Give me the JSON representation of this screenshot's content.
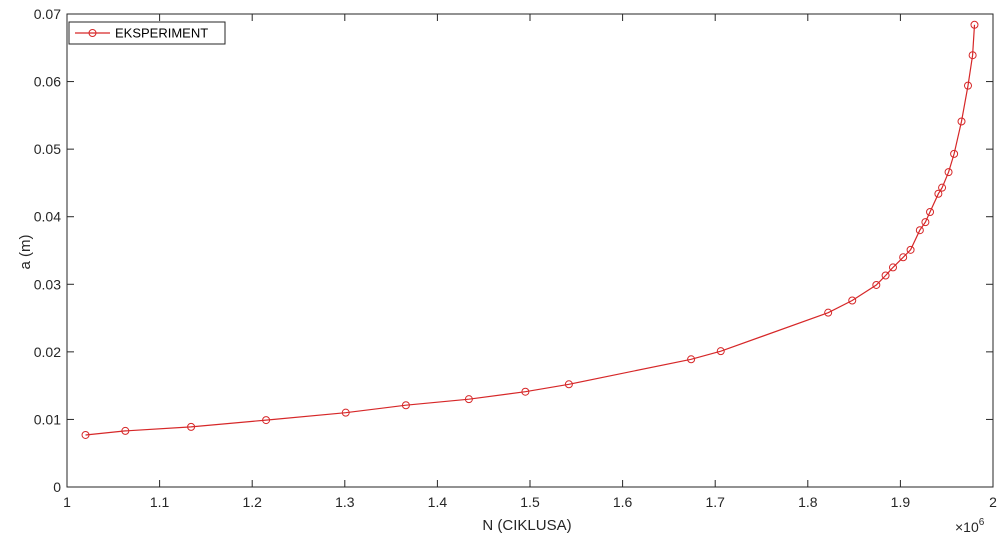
{
  "chart_data": {
    "type": "line",
    "title": "",
    "xlabel": "N (CIKLUSA)",
    "ylabel": "a (m)",
    "x_multiplier": {
      "base": "×10",
      "exponent": "6"
    },
    "xlim": [
      1,
      2
    ],
    "ylim": [
      0,
      0.07
    ],
    "xticks": [
      1,
      1.1,
      1.2,
      1.3,
      1.4,
      1.5,
      1.6,
      1.7,
      1.8,
      1.9,
      2
    ],
    "xtick_labels": [
      "1",
      "1.1",
      "1.2",
      "1.3",
      "1.4",
      "1.5",
      "1.6",
      "1.7",
      "1.8",
      "1.9",
      "2"
    ],
    "yticks": [
      0,
      0.01,
      0.02,
      0.03,
      0.04,
      0.05,
      0.06,
      0.07
    ],
    "ytick_labels": [
      "0",
      "0.01",
      "0.02",
      "0.03",
      "0.04",
      "0.05",
      "0.06",
      "0.07"
    ],
    "grid": false,
    "legend_position": "top-left",
    "series": [
      {
        "name": "EKSPERIMENT",
        "color": "#d62728",
        "marker": "circle-open",
        "x": [
          1.02,
          1.063,
          1.134,
          1.215,
          1.301,
          1.366,
          1.434,
          1.495,
          1.542,
          1.674,
          1.706,
          1.822,
          1.848,
          1.874,
          1.884,
          1.892,
          1.903,
          1.911,
          1.921,
          1.927,
          1.932,
          1.941,
          1.945,
          1.952,
          1.958,
          1.966,
          1.973,
          1.978,
          1.98
        ],
        "y": [
          0.0077,
          0.0083,
          0.0089,
          0.0099,
          0.011,
          0.0121,
          0.013,
          0.0141,
          0.0152,
          0.0189,
          0.0201,
          0.0258,
          0.0276,
          0.0299,
          0.0313,
          0.0325,
          0.034,
          0.0351,
          0.038,
          0.0392,
          0.0407,
          0.0434,
          0.0443,
          0.0466,
          0.0493,
          0.0541,
          0.0594,
          0.0639,
          0.0684
        ]
      }
    ]
  }
}
